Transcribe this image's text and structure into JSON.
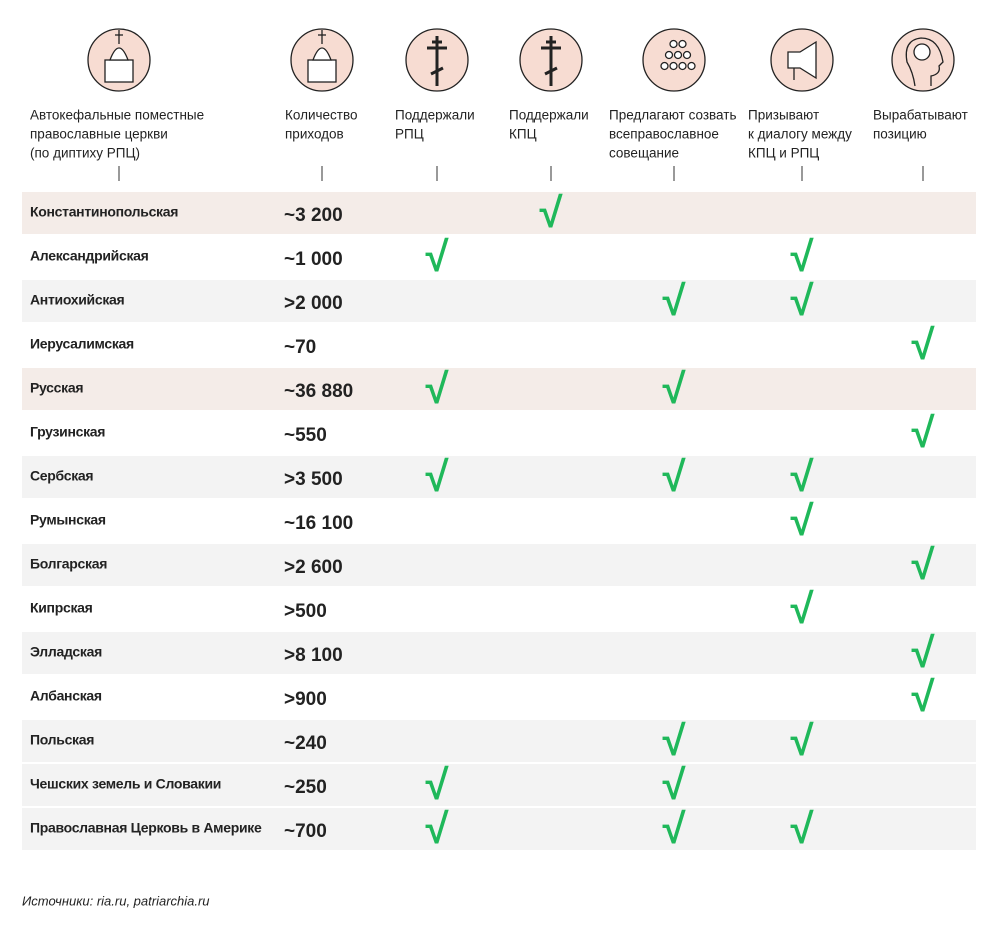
{
  "header": {
    "columns": [
      {
        "lines": [
          "Автокефальные поместные",
          "православные церкви",
          "(по диптиху РПЦ)"
        ]
      },
      {
        "lines": [
          "Количество",
          "приходов"
        ]
      },
      {
        "lines": [
          "Поддержали",
          "РПЦ"
        ]
      },
      {
        "lines": [
          "Поддержали",
          "КПЦ"
        ]
      },
      {
        "lines": [
          "Предлагают созвать",
          "всеправославное",
          "совещание"
        ]
      },
      {
        "lines": [
          "Призывают",
          "к диалогу между",
          "КПЦ и РПЦ"
        ]
      },
      {
        "lines": [
          "Вырабатывают",
          "позицию"
        ]
      }
    ]
  },
  "check_symbol": "√",
  "check_color": "#1fb85a",
  "table": {
    "rows": [
      {
        "name": "Константинопольская",
        "count": "~3 200",
        "bg": "#f4ece8",
        "checks": [
          false,
          true,
          false,
          false,
          false
        ]
      },
      {
        "name": "Александрийская",
        "count": "~1 000",
        "bg": "#ffffff",
        "checks": [
          true,
          false,
          false,
          true,
          false
        ]
      },
      {
        "name": "Антиохийская",
        "count": ">2 000",
        "bg": "#f3f3f3",
        "checks": [
          false,
          false,
          true,
          true,
          false
        ]
      },
      {
        "name": "Иерусалимская",
        "count": "~70",
        "bg": "#ffffff",
        "checks": [
          false,
          false,
          false,
          false,
          true
        ]
      },
      {
        "name": "Русская",
        "count": "~36 880",
        "bg": "#f4ece8",
        "checks": [
          true,
          false,
          true,
          false,
          false
        ]
      },
      {
        "name": "Грузинская",
        "count": "~550",
        "bg": "#ffffff",
        "checks": [
          false,
          false,
          false,
          false,
          true
        ]
      },
      {
        "name": "Сербская",
        "count": ">3 500",
        "bg": "#f3f3f3",
        "checks": [
          true,
          false,
          true,
          true,
          false
        ]
      },
      {
        "name": "Румынская",
        "count": "~16 100",
        "bg": "#ffffff",
        "checks": [
          false,
          false,
          false,
          true,
          false
        ]
      },
      {
        "name": "Болгарская",
        "count": ">2 600",
        "bg": "#f3f3f3",
        "checks": [
          false,
          false,
          false,
          false,
          true
        ]
      },
      {
        "name": "Кипрская",
        "count": ">500",
        "bg": "#ffffff",
        "checks": [
          false,
          false,
          false,
          true,
          false
        ]
      },
      {
        "name": "Элладская",
        "count": ">8 100",
        "bg": "#f3f3f3",
        "checks": [
          false,
          false,
          false,
          false,
          true
        ]
      },
      {
        "name": "Албанская",
        "count": ">900",
        "bg": "#ffffff",
        "checks": [
          false,
          false,
          false,
          false,
          true
        ]
      },
      {
        "name": "Польская",
        "count": "~240",
        "bg": "#f3f3f3",
        "checks": [
          false,
          false,
          true,
          true,
          false
        ]
      },
      {
        "name": "Чешских земель и Словакии",
        "count": "~250",
        "bg": "#f3f3f3",
        "checks": [
          true,
          false,
          true,
          false,
          false
        ]
      },
      {
        "name": "Православная Церковь в Америке",
        "count": "~700",
        "bg": "#f3f3f3",
        "checks": [
          true,
          false,
          true,
          true,
          false
        ]
      }
    ]
  },
  "footer": "Источники: ria.ru, patriarchia.ru"
}
